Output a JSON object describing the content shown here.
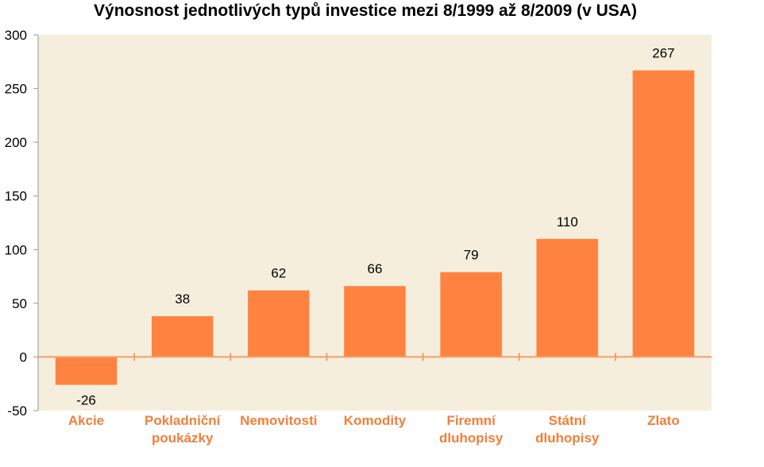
{
  "chart_data": {
    "type": "bar",
    "title": "Výnosnost jednotlivých typů investice mezi 8/1999 až 8/2009 (v USA)",
    "categories": [
      [
        "Akcie"
      ],
      [
        "Pokladniční",
        "poukázky"
      ],
      [
        "Nemovitosti"
      ],
      [
        "Komodity"
      ],
      [
        "Firemní",
        "dluhopisy"
      ],
      [
        "Státní",
        "dluhopisy"
      ],
      [
        "Zlato"
      ]
    ],
    "values": [
      -26,
      38,
      62,
      66,
      79,
      110,
      267
    ],
    "data_labels": [
      "-26",
      "38",
      "62",
      "66",
      "79",
      "110",
      "267"
    ],
    "ylim": [
      -50,
      300
    ],
    "yticks": [
      -50,
      0,
      50,
      100,
      150,
      200,
      250,
      300
    ],
    "xlabel": "",
    "ylabel": "",
    "grid": false,
    "legend": "none",
    "colors": {
      "bar": "#fe8340",
      "plot_background": "#f6eedc",
      "axis": "#f0a070",
      "category_text": "#f07f3a"
    }
  }
}
